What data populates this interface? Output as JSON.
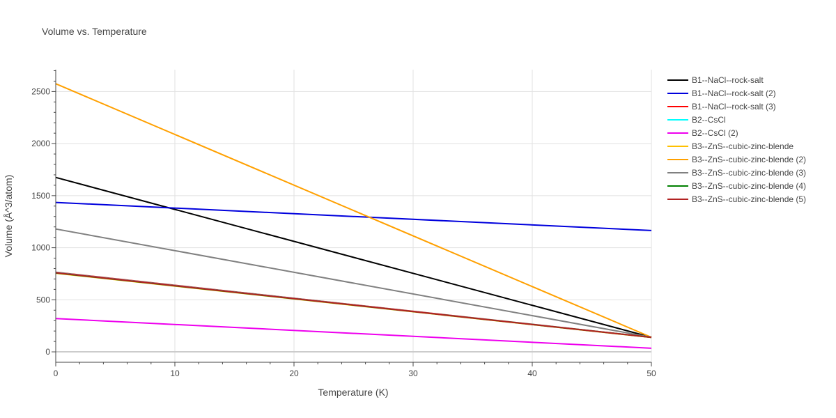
{
  "chart_data": {
    "type": "line",
    "title": "Volume vs. Temperature",
    "xlabel": "Temperature (K)",
    "ylabel": "Volume (Å^3/atom)",
    "xlim": [
      0,
      50
    ],
    "ylim": [
      -100,
      2710
    ],
    "xticks": [
      0,
      10,
      20,
      30,
      40,
      50
    ],
    "yticks": [
      0,
      500,
      1000,
      1500,
      2000,
      2500
    ],
    "grid": true,
    "legend_position": "top-right",
    "series": [
      {
        "name": "B1--NaCl--rock-salt",
        "color": "#000000",
        "x": [
          0,
          50
        ],
        "y": [
          1675,
          140
        ]
      },
      {
        "name": "B1--NaCl--rock-salt (2)",
        "color": "#0000dd",
        "x": [
          0,
          50
        ],
        "y": [
          1435,
          1165
        ]
      },
      {
        "name": "B1--NaCl--rock-salt (3)",
        "color": "#ff0000",
        "x": [
          0,
          50
        ],
        "y": [
          765,
          140
        ]
      },
      {
        "name": "B2--CsCl",
        "color": "#00ffff",
        "x": [
          0,
          50
        ],
        "y": [
          762,
          139
        ]
      },
      {
        "name": "B2--CsCl (2)",
        "color": "#ee00ee",
        "x": [
          0,
          50
        ],
        "y": [
          320,
          35
        ]
      },
      {
        "name": "B3--ZnS--cubic-zinc-blende",
        "color": "#ffc000",
        "x": [
          0,
          50
        ],
        "y": [
          755,
          138
        ]
      },
      {
        "name": "B3--ZnS--cubic-zinc-blende (2)",
        "color": "#ffa000",
        "x": [
          0,
          50
        ],
        "y": [
          2575,
          140
        ]
      },
      {
        "name": "B3--ZnS--cubic-zinc-blende (3)",
        "color": "#808080",
        "x": [
          0,
          50
        ],
        "y": [
          1180,
          140
        ]
      },
      {
        "name": "B3--ZnS--cubic-zinc-blende (4)",
        "color": "#008000",
        "x": [
          0,
          50
        ],
        "y": [
          758,
          139
        ]
      },
      {
        "name": "B3--ZnS--cubic-zinc-blende (5)",
        "color": "#b22222",
        "x": [
          0,
          50
        ],
        "y": [
          760,
          139
        ]
      }
    ]
  }
}
